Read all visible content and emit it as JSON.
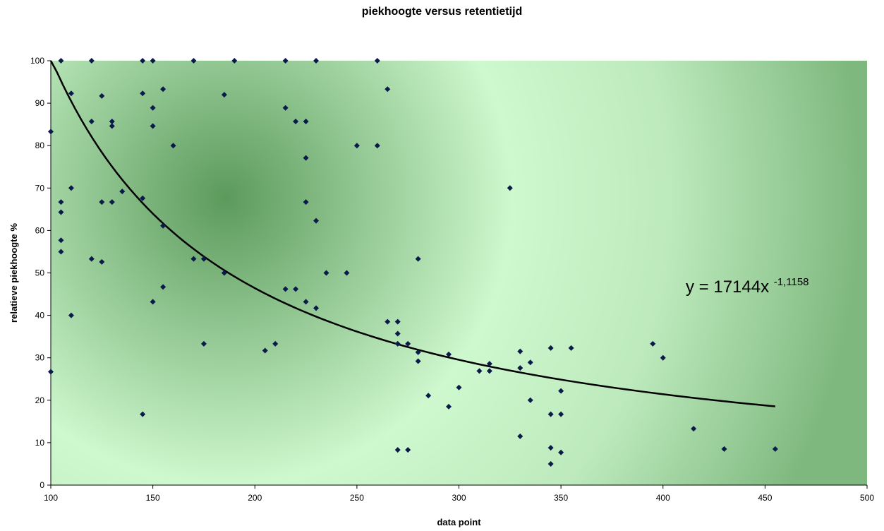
{
  "chart_data": {
    "type": "scatter",
    "title": "piekhoogte versus retentietijd",
    "xlabel": "data point",
    "ylabel": "relatieve piekhoogte %",
    "xlim": [
      100,
      500
    ],
    "ylim": [
      0,
      100
    ],
    "xticks": [
      100,
      150,
      200,
      250,
      300,
      350,
      400,
      450,
      500
    ],
    "yticks": [
      0,
      10,
      20,
      30,
      40,
      50,
      60,
      70,
      80,
      90,
      100
    ],
    "grid": false,
    "legend": "none",
    "colors": {
      "marker": "#0a1a4a",
      "trendline": "#000000",
      "plot_bg_dark": "#5f9e5f",
      "plot_bg_light": "#ccf7cc",
      "axis": "#000000"
    },
    "series": [
      {
        "x": [
          100,
          100,
          105,
          105,
          105,
          105,
          105,
          110,
          110,
          110,
          120,
          120,
          120,
          125,
          125,
          125,
          130,
          130,
          130,
          135,
          145,
          145,
          145,
          145,
          150,
          150,
          150,
          150,
          155,
          155,
          155,
          160,
          170,
          170,
          175,
          175,
          185,
          185,
          190,
          205,
          210,
          215,
          215,
          215,
          220,
          220,
          225,
          225,
          225,
          225,
          230,
          230,
          230,
          235,
          245,
          250,
          260,
          260,
          265,
          265,
          270,
          270,
          270,
          270,
          275,
          275,
          280,
          280,
          280,
          285,
          295,
          295,
          300,
          310,
          315,
          315,
          325,
          330,
          330,
          330,
          335,
          335,
          345,
          345,
          345,
          345,
          350,
          350,
          350,
          355,
          395,
          400,
          415,
          430,
          455
        ],
        "y": [
          83.3,
          26.7,
          100,
          66.7,
          64.3,
          57.7,
          55,
          92.3,
          70,
          40,
          100,
          85.7,
          53.3,
          91.7,
          66.7,
          52.6,
          85.7,
          84.6,
          66.7,
          69.2,
          100,
          92.3,
          67.6,
          16.7,
          100,
          88.9,
          84.6,
          43.2,
          93.3,
          61.1,
          46.7,
          80,
          100,
          53.3,
          53.3,
          33.3,
          92,
          50,
          100,
          31.7,
          33.3,
          100,
          88.9,
          46.2,
          85.7,
          46.2,
          85.7,
          77.1,
          66.7,
          43.2,
          100,
          62.3,
          41.7,
          50,
          50,
          80,
          100,
          80,
          93.3,
          38.5,
          38.5,
          35.7,
          33.3,
          8.3,
          33.3,
          8.3,
          53.3,
          31.3,
          29.2,
          21.1,
          30.8,
          18.5,
          23,
          26.9,
          28.6,
          26.9,
          70,
          31.5,
          27.6,
          11.5,
          28.9,
          20,
          32.3,
          16.7,
          8.8,
          5,
          22.2,
          16.7,
          7.7,
          32.3,
          33.3,
          30,
          13.3,
          8.5,
          8.5
        ]
      }
    ],
    "trendline": {
      "type": "power",
      "coefficient": 17144,
      "exponent": -1.1158,
      "x_range": [
        100,
        455
      ],
      "equation_base": "y = 17144x",
      "equation_exponent": "-1,1158"
    }
  }
}
